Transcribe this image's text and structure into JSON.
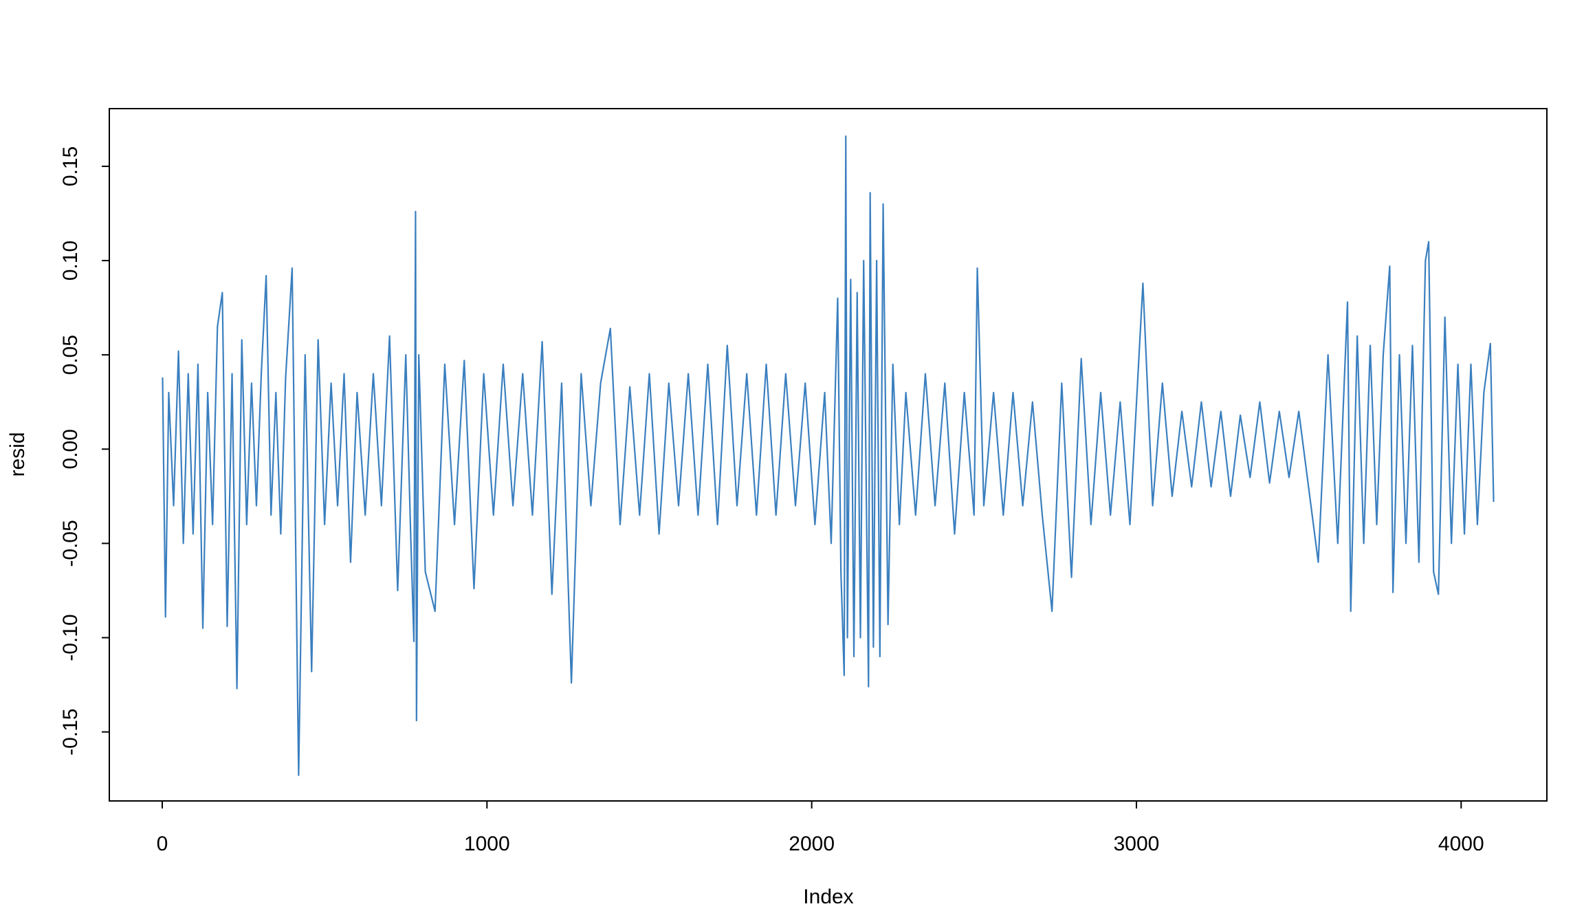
{
  "chart_data": {
    "type": "line",
    "x_label": "Index",
    "y_label": "resid",
    "color": "#3a7fbf",
    "x": [
      1,
      10,
      20,
      35,
      50,
      65,
      80,
      95,
      110,
      125,
      140,
      155,
      170,
      185,
      200,
      215,
      230,
      245,
      260,
      275,
      290,
      305,
      320,
      335,
      350,
      365,
      380,
      400,
      420,
      440,
      460,
      480,
      500,
      520,
      540,
      560,
      580,
      600,
      625,
      650,
      675,
      700,
      725,
      750,
      765,
      775,
      780,
      783,
      790,
      810,
      840,
      870,
      900,
      930,
      960,
      990,
      1020,
      1050,
      1080,
      1110,
      1140,
      1170,
      1200,
      1230,
      1260,
      1290,
      1320,
      1350,
      1380,
      1410,
      1440,
      1470,
      1500,
      1530,
      1560,
      1590,
      1620,
      1650,
      1680,
      1710,
      1740,
      1770,
      1800,
      1830,
      1860,
      1890,
      1920,
      1950,
      1980,
      2010,
      2040,
      2060,
      2080,
      2090,
      2100,
      2105,
      2110,
      2120,
      2130,
      2140,
      2150,
      2160,
      2175,
      2180,
      2190,
      2200,
      2210,
      2220,
      2235,
      2250,
      2270,
      2290,
      2320,
      2350,
      2380,
      2410,
      2440,
      2470,
      2500,
      2510,
      2530,
      2560,
      2590,
      2620,
      2650,
      2680,
      2710,
      2740,
      2770,
      2800,
      2830,
      2860,
      2890,
      2920,
      2950,
      2980,
      3020,
      3050,
      3080,
      3110,
      3140,
      3170,
      3200,
      3230,
      3260,
      3290,
      3320,
      3350,
      3380,
      3410,
      3440,
      3470,
      3500,
      3530,
      3560,
      3590,
      3620,
      3650,
      3660,
      3680,
      3700,
      3720,
      3740,
      3760,
      3780,
      3790,
      3810,
      3830,
      3850,
      3870,
      3890,
      3900,
      3915,
      3930,
      3950,
      3970,
      3990,
      4010,
      4030,
      4050,
      4070,
      4090,
      4100
    ],
    "values": [
      0.038,
      -0.089,
      0.03,
      -0.03,
      0.052,
      -0.05,
      0.04,
      -0.045,
      0.045,
      -0.095,
      0.03,
      -0.04,
      0.065,
      0.083,
      -0.094,
      0.04,
      -0.127,
      0.058,
      -0.04,
      0.035,
      -0.03,
      0.04,
      0.092,
      -0.035,
      0.03,
      -0.045,
      0.038,
      0.096,
      -0.173,
      0.05,
      -0.118,
      0.058,
      -0.04,
      0.035,
      -0.03,
      0.04,
      -0.06,
      0.03,
      -0.035,
      0.04,
      -0.03,
      0.06,
      -0.075,
      0.05,
      -0.045,
      -0.102,
      0.126,
      -0.144,
      0.05,
      -0.065,
      -0.086,
      0.045,
      -0.04,
      0.047,
      -0.074,
      0.04,
      -0.035,
      0.045,
      -0.03,
      0.04,
      -0.035,
      0.057,
      -0.077,
      0.035,
      -0.124,
      0.04,
      -0.03,
      0.035,
      0.064,
      -0.04,
      0.033,
      -0.035,
      0.04,
      -0.045,
      0.035,
      -0.03,
      0.04,
      -0.035,
      0.045,
      -0.04,
      0.055,
      -0.03,
      0.04,
      -0.035,
      0.045,
      -0.035,
      0.04,
      -0.03,
      0.035,
      -0.04,
      0.03,
      -0.05,
      0.08,
      -0.065,
      -0.12,
      0.166,
      -0.1,
      0.09,
      -0.11,
      0.083,
      -0.1,
      0.1,
      -0.126,
      0.136,
      -0.105,
      0.1,
      -0.11,
      0.13,
      -0.093,
      0.045,
      -0.04,
      0.03,
      -0.035,
      0.04,
      -0.03,
      0.035,
      -0.045,
      0.03,
      -0.035,
      0.096,
      -0.03,
      0.03,
      -0.035,
      0.03,
      -0.03,
      0.025,
      -0.035,
      -0.086,
      0.035,
      -0.068,
      0.048,
      -0.04,
      0.03,
      -0.035,
      0.025,
      -0.04,
      0.088,
      -0.03,
      0.035,
      -0.025,
      0.02,
      -0.02,
      0.025,
      -0.02,
      0.02,
      -0.025,
      0.018,
      -0.015,
      0.025,
      -0.018,
      0.02,
      -0.015,
      0.02,
      -0.02,
      -0.06,
      0.05,
      -0.05,
      0.078,
      -0.086,
      0.06,
      -0.05,
      0.055,
      -0.04,
      0.05,
      0.097,
      -0.076,
      0.05,
      -0.05,
      0.055,
      -0.06,
      0.1,
      0.11,
      -0.065,
      -0.077,
      0.07,
      -0.05,
      0.045,
      -0.045,
      0.045,
      -0.04,
      0.03,
      0.056,
      -0.028
    ],
    "xlim": [
      -163,
      4264
    ],
    "ylim": [
      -0.1866,
      0.1806
    ],
    "xticks": [
      0,
      1000,
      2000,
      3000,
      4000
    ],
    "yticks": [
      -0.15,
      {
        "value": -0.1,
        "label": "-0.10"
      },
      -0.05,
      {
        "value": 0,
        "label": "0.00"
      },
      0.05,
      {
        "value": 0.1,
        "label": "0.10"
      },
      0.15
    ]
  }
}
